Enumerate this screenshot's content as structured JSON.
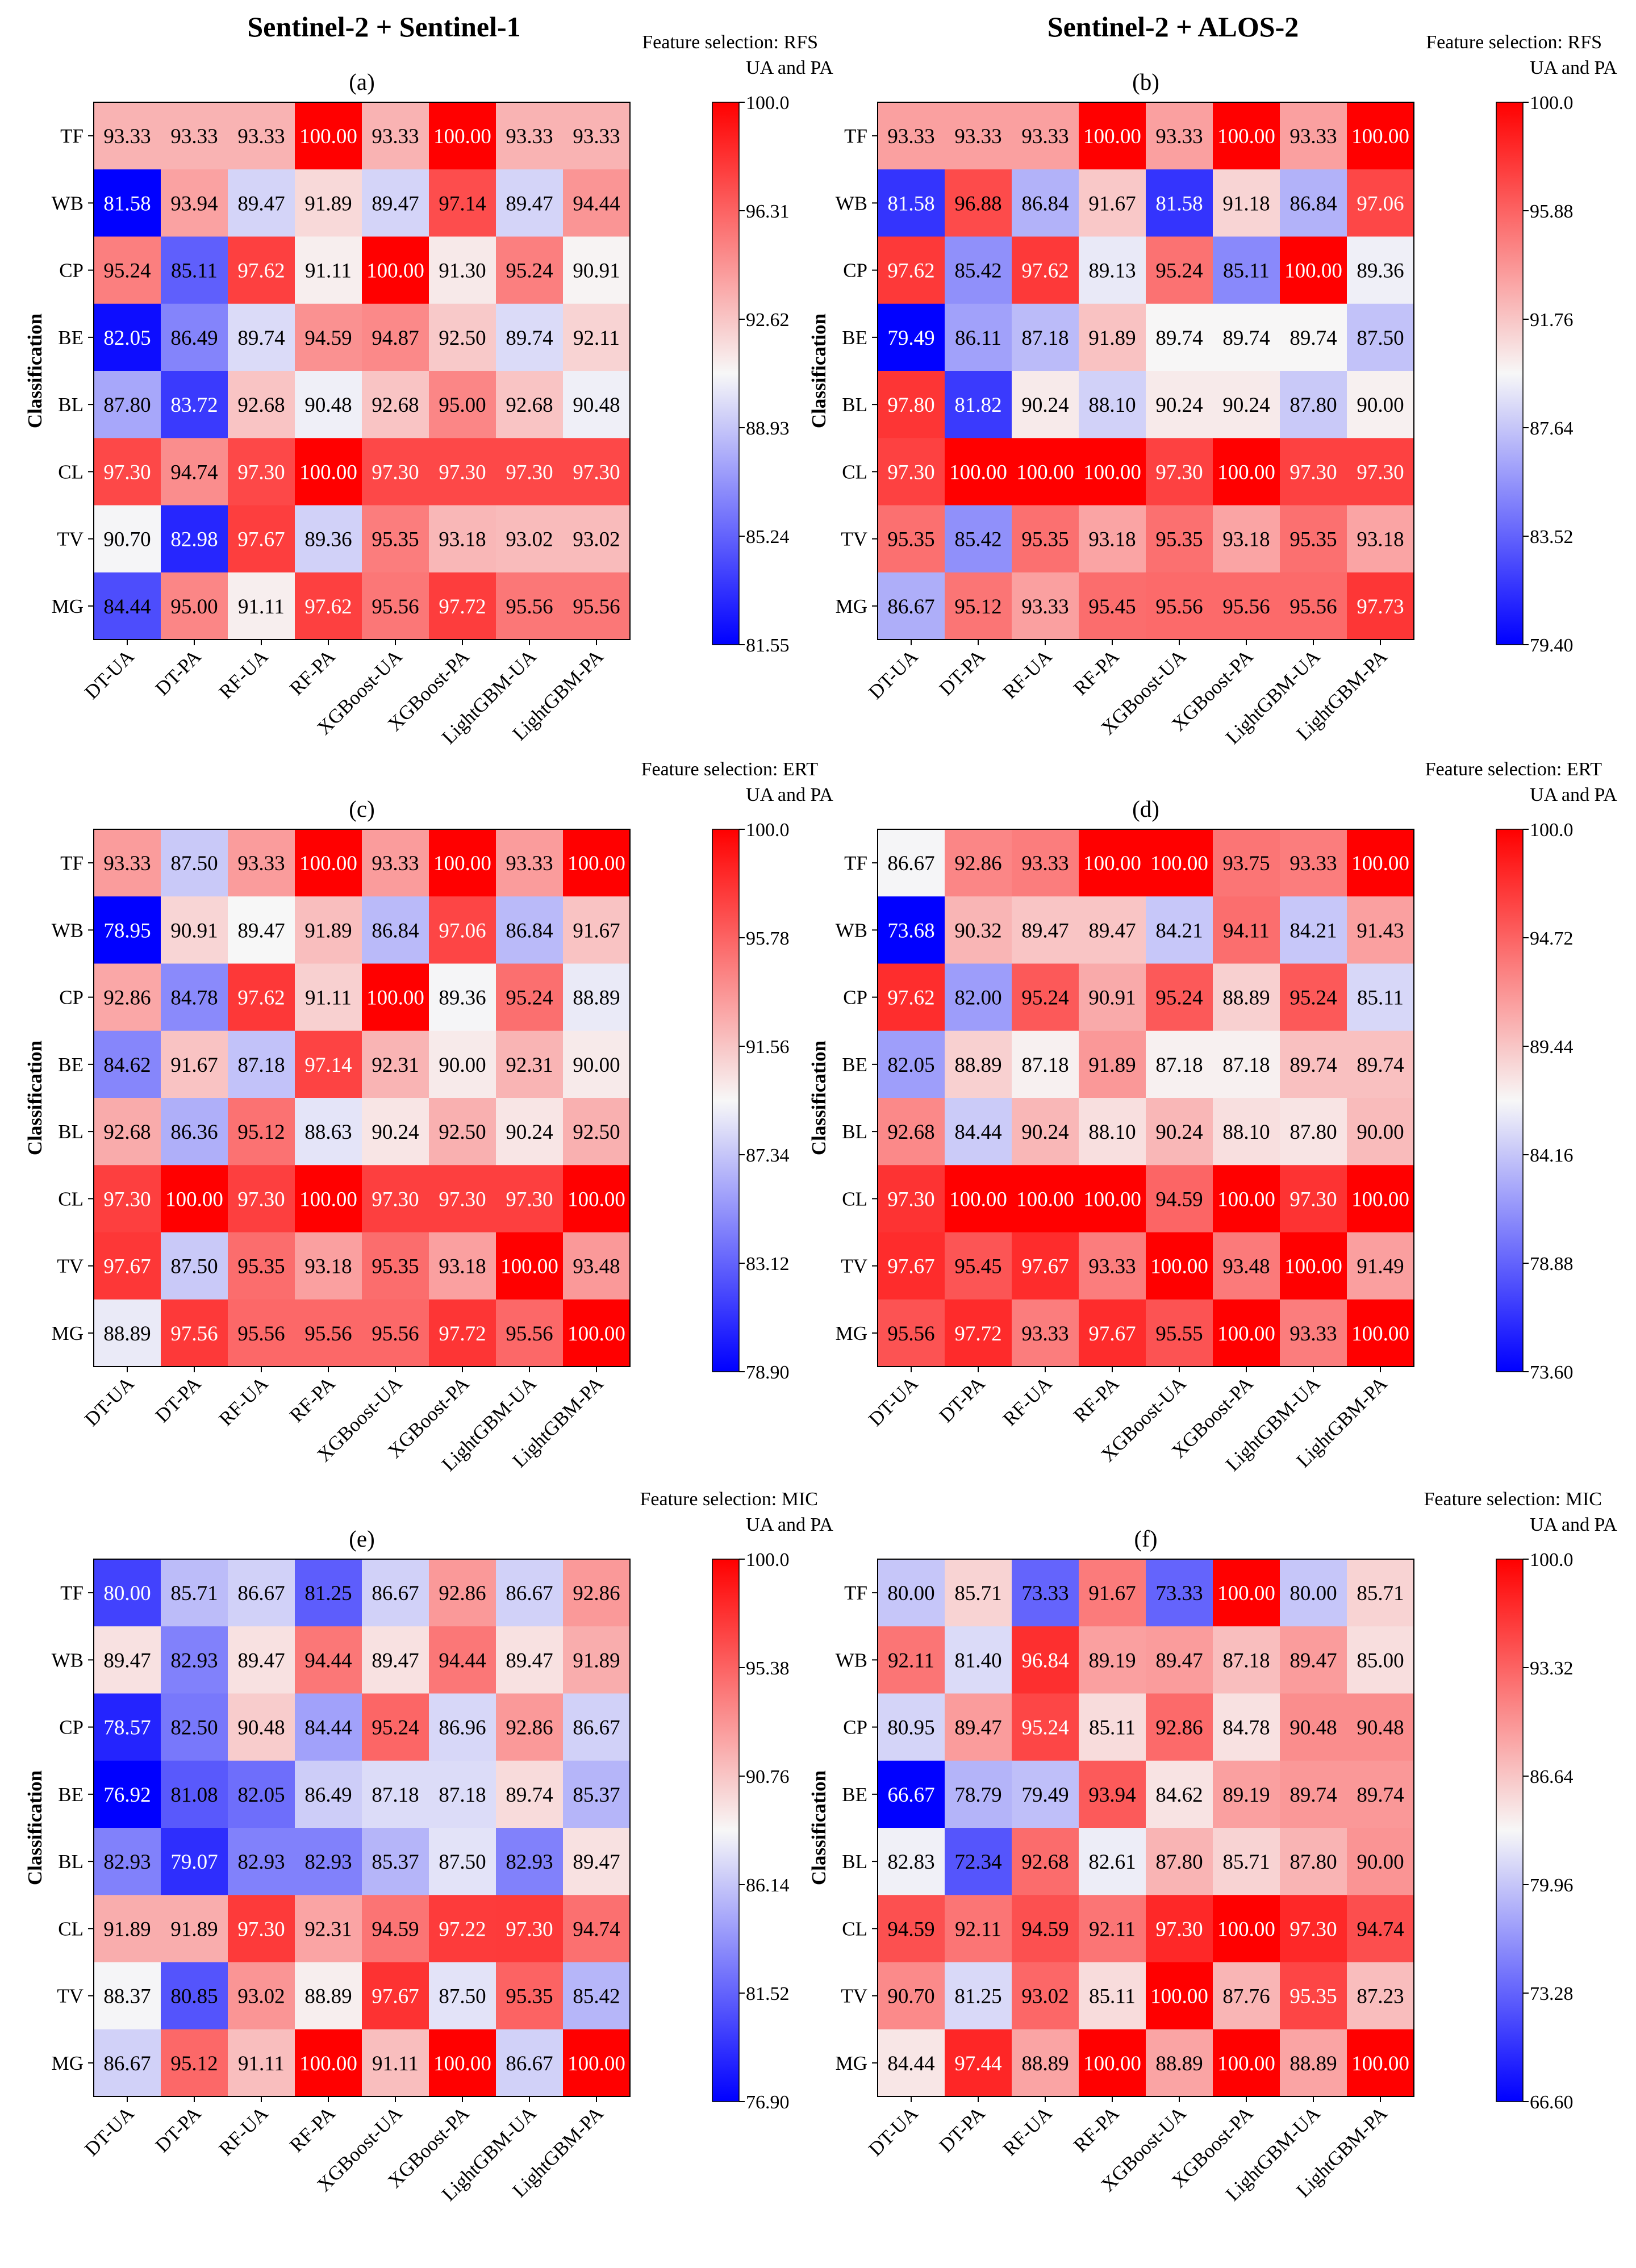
{
  "figure": {
    "column_titles": [
      "Sentinel-2 + Sentinel-1",
      "Sentinel-2 + ALOS-2"
    ],
    "colorbar_label": "UA and PA",
    "ylabel": "Classification",
    "colors": {
      "low": "#0000ff",
      "mid": "#f7f7f7",
      "high": "#ff0000"
    }
  },
  "chart_data": [
    {
      "type": "heatmap",
      "panel": "(a)",
      "feature_selection": "Feature selection: RFS",
      "colorbar_label": "UA and PA",
      "ylabel": "Classification",
      "x_labels": [
        "DT-UA",
        "DT-PA",
        "RF-UA",
        "RF-PA",
        "XGBoost-UA",
        "XGBoost-PA",
        "LightGBM-UA",
        "LightGBM-PA"
      ],
      "y_labels": [
        "TF",
        "WB",
        "CP",
        "BE",
        "BL",
        "CL",
        "TV",
        "MG"
      ],
      "values": [
        [
          "93.33",
          "93.33",
          "93.33",
          "100.00",
          "93.33",
          "100.00",
          "93.33",
          "93.33"
        ],
        [
          "81.58",
          "93.94",
          "89.47",
          "91.89",
          "89.47",
          "97.14",
          "89.47",
          "94.44"
        ],
        [
          "95.24",
          "85.11",
          "97.62",
          "91.11",
          "100.00",
          "91.30",
          "95.24",
          "90.91"
        ],
        [
          "82.05",
          "86.49",
          "89.74",
          "94.59",
          "94.87",
          "92.50",
          "89.74",
          "92.11"
        ],
        [
          "87.80",
          "83.72",
          "92.68",
          "90.48",
          "92.68",
          "95.00",
          "92.68",
          "90.48"
        ],
        [
          "97.30",
          "94.74",
          "97.30",
          "100.00",
          "97.30",
          "97.30",
          "97.30",
          "97.30"
        ],
        [
          "90.70",
          "82.98",
          "97.67",
          "89.36",
          "95.35",
          "93.18",
          "93.02",
          "93.02"
        ],
        [
          "84.44",
          "95.00",
          "91.11",
          "97.62",
          "95.56",
          "97.72",
          "95.56",
          "95.56"
        ]
      ],
      "vmin": 81.55,
      "vmax": 100.0,
      "colorbar_ticks": [
        "100.0",
        "96.31",
        "92.62",
        "88.93",
        "85.24",
        "81.55"
      ]
    },
    {
      "type": "heatmap",
      "panel": "(b)",
      "feature_selection": "Feature selection: RFS",
      "colorbar_label": "UA and PA",
      "ylabel": "Classification",
      "x_labels": [
        "DT-UA",
        "DT-PA",
        "RF-UA",
        "RF-PA",
        "XGBoost-UA",
        "XGBoost-PA",
        "LightGBM-UA",
        "LightGBM-PA"
      ],
      "y_labels": [
        "TF",
        "WB",
        "CP",
        "BE",
        "BL",
        "CL",
        "TV",
        "MG"
      ],
      "values": [
        [
          "93.33",
          "93.33",
          "93.33",
          "100.00",
          "93.33",
          "100.00",
          "93.33",
          "100.00"
        ],
        [
          "81.58",
          "96.88",
          "86.84",
          "91.67",
          "81.58",
          "91.18",
          "86.84",
          "97.06"
        ],
        [
          "97.62",
          "85.42",
          "97.62",
          "89.13",
          "95.24",
          "85.11",
          "100.00",
          "89.36"
        ],
        [
          "79.49",
          "86.11",
          "87.18",
          "91.89",
          "89.74",
          "89.74",
          "89.74",
          "87.50"
        ],
        [
          "97.80",
          "81.82",
          "90.24",
          "88.10",
          "90.24",
          "90.24",
          "87.80",
          "90.00"
        ],
        [
          "97.30",
          "100.00",
          "100.00",
          "100.00",
          "97.30",
          "100.00",
          "97.30",
          "97.30"
        ],
        [
          "95.35",
          "85.42",
          "95.35",
          "93.18",
          "95.35",
          "93.18",
          "95.35",
          "93.18"
        ],
        [
          "86.67",
          "95.12",
          "93.33",
          "95.45",
          "95.56",
          "95.56",
          "95.56",
          "97.73"
        ]
      ],
      "vmin": 79.4,
      "vmax": 100.0,
      "colorbar_ticks": [
        "100.0",
        "95.88",
        "91.76",
        "87.64",
        "83.52",
        "79.40"
      ]
    },
    {
      "type": "heatmap",
      "panel": "(c)",
      "feature_selection": "Feature selection: ERT",
      "colorbar_label": "UA and PA",
      "ylabel": "Classification",
      "x_labels": [
        "DT-UA",
        "DT-PA",
        "RF-UA",
        "RF-PA",
        "XGBoost-UA",
        "XGBoost-PA",
        "LightGBM-UA",
        "LightGBM-PA"
      ],
      "y_labels": [
        "TF",
        "WB",
        "CP",
        "BE",
        "BL",
        "CL",
        "TV",
        "MG"
      ],
      "values": [
        [
          "93.33",
          "87.50",
          "93.33",
          "100.00",
          "93.33",
          "100.00",
          "93.33",
          "100.00"
        ],
        [
          "78.95",
          "90.91",
          "89.47",
          "91.89",
          "86.84",
          "97.06",
          "86.84",
          "91.67"
        ],
        [
          "92.86",
          "84.78",
          "97.62",
          "91.11",
          "100.00",
          "89.36",
          "95.24",
          "88.89"
        ],
        [
          "84.62",
          "91.67",
          "87.18",
          "97.14",
          "92.31",
          "90.00",
          "92.31",
          "90.00"
        ],
        [
          "92.68",
          "86.36",
          "95.12",
          "88.63",
          "90.24",
          "92.50",
          "90.24",
          "92.50"
        ],
        [
          "97.30",
          "100.00",
          "97.30",
          "100.00",
          "97.30",
          "97.30",
          "97.30",
          "100.00"
        ],
        [
          "97.67",
          "87.50",
          "95.35",
          "93.18",
          "95.35",
          "93.18",
          "100.00",
          "93.48"
        ],
        [
          "88.89",
          "97.56",
          "95.56",
          "95.56",
          "95.56",
          "97.72",
          "95.56",
          "100.00"
        ]
      ],
      "vmin": 78.9,
      "vmax": 100.0,
      "colorbar_ticks": [
        "100.0",
        "95.78",
        "91.56",
        "87.34",
        "83.12",
        "78.90"
      ]
    },
    {
      "type": "heatmap",
      "panel": "(d)",
      "feature_selection": "Feature selection: ERT",
      "colorbar_label": "UA and PA",
      "ylabel": "Classification",
      "x_labels": [
        "DT-UA",
        "DT-PA",
        "RF-UA",
        "RF-PA",
        "XGBoost-UA",
        "XGBoost-PA",
        "LightGBM-UA",
        "LightGBM-PA"
      ],
      "y_labels": [
        "TF",
        "WB",
        "CP",
        "BE",
        "BL",
        "CL",
        "TV",
        "MG"
      ],
      "values": [
        [
          "86.67",
          "92.86",
          "93.33",
          "100.00",
          "100.00",
          "93.75",
          "93.33",
          "100.00"
        ],
        [
          "73.68",
          "90.32",
          "89.47",
          "89.47",
          "84.21",
          "94.11",
          "84.21",
          "91.43"
        ],
        [
          "97.62",
          "82.00",
          "95.24",
          "90.91",
          "95.24",
          "88.89",
          "95.24",
          "85.11"
        ],
        [
          "82.05",
          "88.89",
          "87.18",
          "91.89",
          "87.18",
          "87.18",
          "89.74",
          "89.74"
        ],
        [
          "92.68",
          "84.44",
          "90.24",
          "88.10",
          "90.24",
          "88.10",
          "87.80",
          "90.00"
        ],
        [
          "97.30",
          "100.00",
          "100.00",
          "100.00",
          "94.59",
          "100.00",
          "97.30",
          "100.00"
        ],
        [
          "97.67",
          "95.45",
          "97.67",
          "93.33",
          "100.00",
          "93.48",
          "100.00",
          "91.49"
        ],
        [
          "95.56",
          "97.72",
          "93.33",
          "97.67",
          "95.55",
          "100.00",
          "93.33",
          "100.00"
        ]
      ],
      "vmin": 73.6,
      "vmax": 100.0,
      "colorbar_ticks": [
        "100.0",
        "94.72",
        "89.44",
        "84.16",
        "78.88",
        "73.60"
      ]
    },
    {
      "type": "heatmap",
      "panel": "(e)",
      "feature_selection": "Feature selection: MIC",
      "colorbar_label": "UA and PA",
      "ylabel": "Classification",
      "x_labels": [
        "DT-UA",
        "DT-PA",
        "RF-UA",
        "RF-PA",
        "XGBoost-UA",
        "XGBoost-PA",
        "LightGBM-UA",
        "LightGBM-PA"
      ],
      "y_labels": [
        "TF",
        "WB",
        "CP",
        "BE",
        "BL",
        "CL",
        "TV",
        "MG"
      ],
      "values": [
        [
          "80.00",
          "85.71",
          "86.67",
          "81.25",
          "86.67",
          "92.86",
          "86.67",
          "92.86"
        ],
        [
          "89.47",
          "82.93",
          "89.47",
          "94.44",
          "89.47",
          "94.44",
          "89.47",
          "91.89"
        ],
        [
          "78.57",
          "82.50",
          "90.48",
          "84.44",
          "95.24",
          "86.96",
          "92.86",
          "86.67"
        ],
        [
          "76.92",
          "81.08",
          "82.05",
          "86.49",
          "87.18",
          "87.18",
          "89.74",
          "85.37"
        ],
        [
          "82.93",
          "79.07",
          "82.93",
          "82.93",
          "85.37",
          "87.50",
          "82.93",
          "89.47"
        ],
        [
          "91.89",
          "91.89",
          "97.30",
          "92.31",
          "94.59",
          "97.22",
          "97.30",
          "94.74"
        ],
        [
          "88.37",
          "80.85",
          "93.02",
          "88.89",
          "97.67",
          "87.50",
          "95.35",
          "85.42"
        ],
        [
          "86.67",
          "95.12",
          "91.11",
          "100.00",
          "91.11",
          "100.00",
          "86.67",
          "100.00"
        ]
      ],
      "vmin": 76.9,
      "vmax": 100.0,
      "colorbar_ticks": [
        "100.0",
        "95.38",
        "90.76",
        "86.14",
        "81.52",
        "76.90"
      ]
    },
    {
      "type": "heatmap",
      "panel": "(f)",
      "feature_selection": "Feature selection: MIC",
      "colorbar_label": "UA and PA",
      "ylabel": "Classification",
      "x_labels": [
        "DT-UA",
        "DT-PA",
        "RF-UA",
        "RF-PA",
        "XGBoost-UA",
        "XGBoost-PA",
        "LightGBM-UA",
        "LightGBM-PA"
      ],
      "y_labels": [
        "TF",
        "WB",
        "CP",
        "BE",
        "BL",
        "CL",
        "TV",
        "MG"
      ],
      "values": [
        [
          "80.00",
          "85.71",
          "73.33",
          "91.67",
          "73.33",
          "100.00",
          "80.00",
          "85.71"
        ],
        [
          "92.11",
          "81.40",
          "96.84",
          "89.19",
          "89.47",
          "87.18",
          "89.47",
          "85.00"
        ],
        [
          "80.95",
          "89.47",
          "95.24",
          "85.11",
          "92.86",
          "84.78",
          "90.48",
          "90.48"
        ],
        [
          "66.67",
          "78.79",
          "79.49",
          "93.94",
          "84.62",
          "89.19",
          "89.74",
          "89.74"
        ],
        [
          "82.83",
          "72.34",
          "92.68",
          "82.61",
          "87.80",
          "85.71",
          "87.80",
          "90.00"
        ],
        [
          "94.59",
          "92.11",
          "94.59",
          "92.11",
          "97.30",
          "100.00",
          "97.30",
          "94.74"
        ],
        [
          "90.70",
          "81.25",
          "93.02",
          "85.11",
          "100.00",
          "87.76",
          "95.35",
          "87.23"
        ],
        [
          "84.44",
          "97.44",
          "88.89",
          "100.00",
          "88.89",
          "100.00",
          "88.89",
          "100.00"
        ]
      ],
      "vmin": 66.6,
      "vmax": 100.0,
      "colorbar_ticks": [
        "100.0",
        "93.32",
        "86.64",
        "79.96",
        "73.28",
        "66.60"
      ]
    }
  ]
}
